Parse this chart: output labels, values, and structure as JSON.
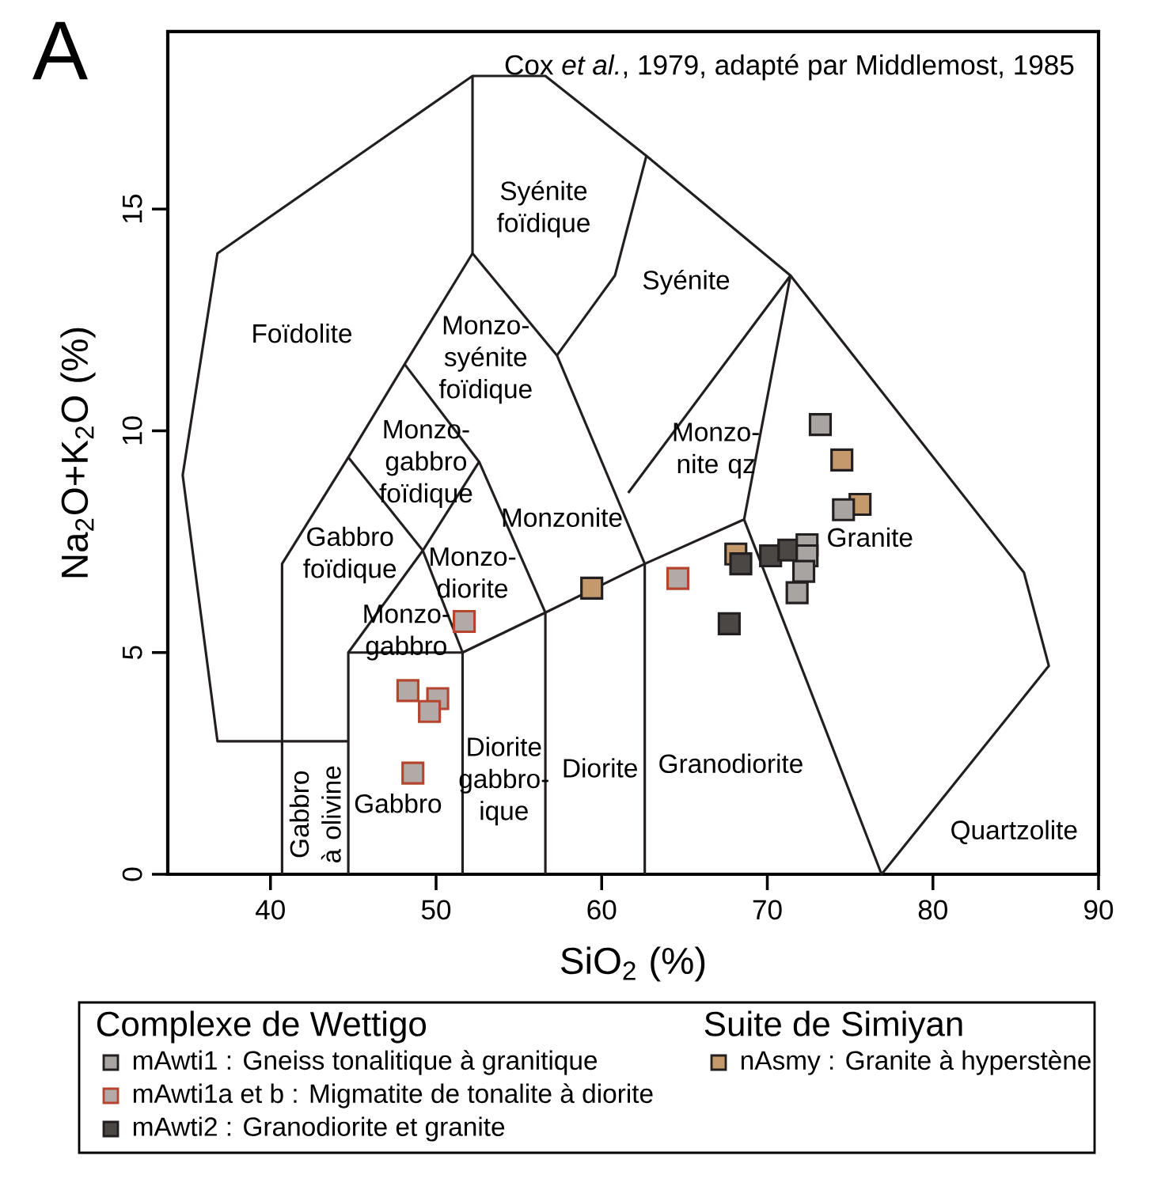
{
  "chart_data": {
    "type": "scatter",
    "title": "A",
    "xlabel": "SiO$_{2}$ (%)",
    "ylabel": "Na$_{2}$O+K$_{2}$O (%)",
    "xlim": [
      33.8,
      90
    ],
    "ylim": [
      0,
      19
    ],
    "xticks": [
      40,
      50,
      60,
      70,
      80,
      90
    ],
    "yticks": [
      0,
      5,
      10,
      15
    ],
    "legend": "bottom",
    "annotations": [
      "Cox *et al.*, 1979, adapté par Middlemost, 1985",
      "Complexe de Wettigo",
      "Suite de Simiyan",
      "Foïdolite",
      "Syénite foïdique",
      "Syénite",
      "Monzo- syénite foïdique",
      "Monzo- gabbro foïdique",
      "Monzonite",
      "Monzo- nite qz",
      "Gabbro foïdique",
      "Monzo- diorite",
      "Monzo- gabbro",
      "Granite",
      "Granodiorite",
      "Diorite",
      "Diorite gabbro- ique",
      "Gabbro",
      "Gabbro à olivine",
      "Quartzolite"
    ],
    "series": [
      {
        "name": "mAwti1 : Gneiss tonalitique à granitique",
        "color": "#a7a4a1",
        "marker": "square",
        "x": [
          73.2,
          74.6,
          72.4,
          72.4,
          72.2,
          71.8
        ],
        "values": [
          10.14,
          8.22,
          7.43,
          7.18,
          6.83,
          6.35
        ]
      },
      {
        "name": "mAwti1a et b : Migmatite de tonalite à diorite",
        "color": "#b3aaa8",
        "marker": "square",
        "x": [
          51.7,
          64.6,
          48.3,
          50.1,
          49.6,
          48.6
        ],
        "values": [
          5.7,
          6.67,
          4.14,
          3.96,
          3.67,
          2.28
        ]
      },
      {
        "name": "mAwti2 : Granodiorite et granite",
        "color": "#4b4745",
        "marker": "square",
        "x": [
          68.4,
          70.2,
          71.3,
          67.7
        ],
        "values": [
          7.0,
          7.18,
          7.31,
          5.65
        ]
      },
      {
        "name": "nAsmy : Granite à hyperstène",
        "color": "#c49a6c",
        "marker": "square",
        "x": [
          59.4,
          68.1,
          74.5,
          75.6
        ],
        "values": [
          6.45,
          7.22,
          9.34,
          8.34
        ]
      },
      {
        "type": "line",
        "color": "#231f20",
        "x": [
          44.7,
          36.8,
          34.7,
          36.8,
          52.2,
          56.6,
          62.7,
          71.4,
          85.5,
          87.0,
          76.9,
          68.6
        ],
        "values": [
          3.0,
          3.0,
          9.0,
          14.0,
          18.0,
          18.0,
          16.2,
          13.5,
          6.8,
          4.7,
          0,
          8.0
        ]
      },
      {
        "type": "line",
        "color": "#231f20",
        "x": [
          52.2,
          52.2,
          57.3,
          62.6,
          62.6
        ],
        "values": [
          18.0,
          14.0,
          11.7,
          7.0,
          0
        ]
      },
      {
        "type": "line",
        "color": "#231f20",
        "x": [
          62.7,
          60.8,
          57.3
        ],
        "values": [
          16.2,
          13.5,
          11.7
        ]
      },
      {
        "type": "line",
        "color": "#231f20",
        "x": [
          52.2,
          48.1,
          44.7,
          40.7,
          40.7
        ],
        "values": [
          14.0,
          11.5,
          9.4,
          7.0,
          0
        ]
      },
      {
        "type": "line",
        "color": "#231f20",
        "x": [
          48.1,
          52.6,
          56.6,
          56.6
        ],
        "values": [
          11.5,
          9.3,
          5.9,
          0
        ]
      },
      {
        "type": "line",
        "color": "#231f20",
        "x": [
          44.7,
          49.2,
          51.6,
          51.6
        ],
        "values": [
          9.4,
          7.3,
          5.0,
          0
        ]
      },
      {
        "type": "line",
        "color": "#231f20",
        "x": [
          52.6,
          49.2,
          44.7,
          44.7
        ],
        "values": [
          9.3,
          7.3,
          5.0,
          0
        ]
      },
      {
        "type": "line",
        "color": "#231f20",
        "x": [
          44.7,
          51.6,
          56.6,
          62.6,
          68.6,
          71.4,
          61.6
        ],
        "values": [
          5.0,
          5.0,
          5.9,
          7.0,
          8.0,
          13.5,
          8.6
        ]
      }
    ]
  }
}
